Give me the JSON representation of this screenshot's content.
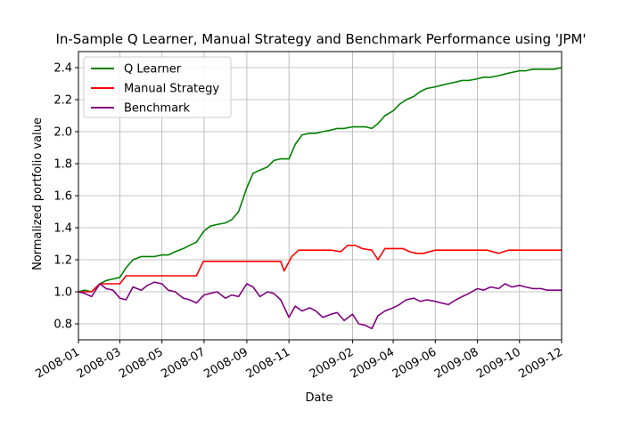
{
  "chart_data": {
    "type": "line",
    "title": "In-Sample Q Learner, Manual Strategy and Benchmark Performance using 'JPM'",
    "xlabel": "Date",
    "ylabel": "Normalized portfolio value",
    "xlim": [
      "2008-01-01",
      "2009-12-01"
    ],
    "ylim": [
      0.7,
      2.5
    ],
    "x_ticks": [
      "2008-01",
      "2008-03",
      "2008-05",
      "2008-07",
      "2008-09",
      "2008-11",
      "2009-02",
      "2009-04",
      "2009-06",
      "2009-08",
      "2009-10",
      "2009-12"
    ],
    "y_ticks": [
      0.8,
      1.0,
      1.2,
      1.4,
      1.6,
      1.8,
      2.0,
      2.2,
      2.4
    ],
    "y_tick_labels": [
      "0.8",
      "1.0",
      "1.2",
      "1.4",
      "1.6",
      "1.8",
      "2.0",
      "2.2",
      "2.4"
    ],
    "grid": true,
    "legend_position": "top-left",
    "series": [
      {
        "name": "Q Learner",
        "color": "#008000",
        "x": [
          "2008-01-01",
          "2008-01-10",
          "2008-01-20",
          "2008-02-01",
          "2008-02-10",
          "2008-02-20",
          "2008-03-01",
          "2008-03-10",
          "2008-03-20",
          "2008-04-01",
          "2008-04-10",
          "2008-04-20",
          "2008-05-01",
          "2008-05-10",
          "2008-05-20",
          "2008-06-01",
          "2008-06-10",
          "2008-06-20",
          "2008-07-01",
          "2008-07-10",
          "2008-07-20",
          "2008-08-01",
          "2008-08-10",
          "2008-08-20",
          "2008-09-01",
          "2008-09-10",
          "2008-09-20",
          "2008-10-01",
          "2008-10-10",
          "2008-10-20",
          "2008-11-01",
          "2008-11-10",
          "2008-11-20",
          "2008-12-01",
          "2008-12-10",
          "2008-12-20",
          "2009-01-01",
          "2009-01-10",
          "2009-01-20",
          "2009-02-01",
          "2009-02-10",
          "2009-02-20",
          "2009-03-01",
          "2009-03-10",
          "2009-03-20",
          "2009-04-01",
          "2009-04-10",
          "2009-04-20",
          "2009-05-01",
          "2009-05-10",
          "2009-05-20",
          "2009-06-01",
          "2009-06-10",
          "2009-06-20",
          "2009-07-01",
          "2009-07-10",
          "2009-07-20",
          "2009-08-01",
          "2009-08-10",
          "2009-08-20",
          "2009-09-01",
          "2009-09-10",
          "2009-09-20",
          "2009-10-01",
          "2009-10-10",
          "2009-10-20",
          "2009-11-01",
          "2009-11-10",
          "2009-11-20",
          "2009-12-01"
        ],
        "values": [
          1.0,
          1.01,
          1.0,
          1.05,
          1.07,
          1.08,
          1.09,
          1.15,
          1.2,
          1.22,
          1.22,
          1.22,
          1.23,
          1.23,
          1.25,
          1.27,
          1.29,
          1.31,
          1.38,
          1.41,
          1.42,
          1.43,
          1.45,
          1.5,
          1.65,
          1.74,
          1.76,
          1.78,
          1.82,
          1.83,
          1.83,
          1.92,
          1.98,
          1.99,
          1.99,
          2.0,
          2.01,
          2.02,
          2.02,
          2.03,
          2.03,
          2.03,
          2.02,
          2.05,
          2.1,
          2.13,
          2.17,
          2.2,
          2.22,
          2.25,
          2.27,
          2.28,
          2.29,
          2.3,
          2.31,
          2.32,
          2.32,
          2.33,
          2.34,
          2.34,
          2.35,
          2.36,
          2.37,
          2.38,
          2.38,
          2.39,
          2.39,
          2.39,
          2.39,
          2.4
        ]
      },
      {
        "name": "Manual Strategy",
        "color": "#ff0000",
        "x": [
          "2008-01-01",
          "2008-01-10",
          "2008-01-20",
          "2008-02-01",
          "2008-02-20",
          "2008-03-01",
          "2008-03-10",
          "2008-03-20",
          "2008-05-01",
          "2008-06-20",
          "2008-06-30",
          "2008-07-10",
          "2008-08-01",
          "2008-09-01",
          "2008-10-01",
          "2008-10-20",
          "2008-10-25",
          "2008-11-05",
          "2008-11-15",
          "2008-12-01",
          "2009-01-01",
          "2009-01-15",
          "2009-01-25",
          "2009-02-05",
          "2009-02-15",
          "2009-03-01",
          "2009-03-10",
          "2009-03-20",
          "2009-04-01",
          "2009-04-15",
          "2009-04-25",
          "2009-05-05",
          "2009-05-15",
          "2009-06-01",
          "2009-06-15",
          "2009-07-01",
          "2009-07-20",
          "2009-08-01",
          "2009-08-15",
          "2009-09-01",
          "2009-09-15",
          "2009-10-01",
          "2009-11-01",
          "2009-12-01"
        ],
        "values": [
          1.0,
          1.0,
          1.0,
          1.05,
          1.05,
          1.05,
          1.1,
          1.1,
          1.1,
          1.1,
          1.19,
          1.19,
          1.19,
          1.19,
          1.19,
          1.19,
          1.13,
          1.22,
          1.26,
          1.26,
          1.26,
          1.25,
          1.29,
          1.29,
          1.27,
          1.26,
          1.2,
          1.27,
          1.27,
          1.27,
          1.25,
          1.24,
          1.24,
          1.26,
          1.26,
          1.26,
          1.26,
          1.26,
          1.26,
          1.24,
          1.26,
          1.26,
          1.26,
          1.26
        ]
      },
      {
        "name": "Benchmark",
        "color": "#800080",
        "x": [
          "2008-01-01",
          "2008-01-10",
          "2008-01-20",
          "2008-02-01",
          "2008-02-10",
          "2008-02-20",
          "2008-03-01",
          "2008-03-10",
          "2008-03-20",
          "2008-04-01",
          "2008-04-10",
          "2008-04-20",
          "2008-05-01",
          "2008-05-10",
          "2008-05-20",
          "2008-06-01",
          "2008-06-10",
          "2008-06-20",
          "2008-07-01",
          "2008-07-10",
          "2008-07-20",
          "2008-08-01",
          "2008-08-10",
          "2008-08-20",
          "2008-09-01",
          "2008-09-10",
          "2008-09-20",
          "2008-10-01",
          "2008-10-10",
          "2008-10-20",
          "2008-11-01",
          "2008-11-10",
          "2008-11-20",
          "2008-12-01",
          "2008-12-10",
          "2008-12-20",
          "2009-01-01",
          "2009-01-10",
          "2009-01-20",
          "2009-02-01",
          "2009-02-10",
          "2009-02-20",
          "2009-03-01",
          "2009-03-10",
          "2009-03-20",
          "2009-04-01",
          "2009-04-10",
          "2009-04-20",
          "2009-05-01",
          "2009-05-10",
          "2009-05-20",
          "2009-06-01",
          "2009-06-10",
          "2009-06-20",
          "2009-07-01",
          "2009-07-10",
          "2009-07-20",
          "2009-08-01",
          "2009-08-10",
          "2009-08-20",
          "2009-09-01",
          "2009-09-10",
          "2009-09-20",
          "2009-10-01",
          "2009-10-10",
          "2009-10-20",
          "2009-11-01",
          "2009-11-10",
          "2009-11-20",
          "2009-12-01"
        ],
        "values": [
          1.0,
          0.99,
          0.97,
          1.05,
          1.02,
          1.01,
          0.96,
          0.95,
          1.03,
          1.01,
          1.04,
          1.06,
          1.05,
          1.01,
          1.0,
          0.96,
          0.95,
          0.93,
          0.98,
          0.99,
          1.0,
          0.96,
          0.98,
          0.97,
          1.05,
          1.03,
          0.97,
          1.0,
          0.99,
          0.95,
          0.84,
          0.91,
          0.88,
          0.9,
          0.88,
          0.84,
          0.86,
          0.87,
          0.82,
          0.86,
          0.8,
          0.79,
          0.77,
          0.85,
          0.88,
          0.9,
          0.92,
          0.95,
          0.96,
          0.94,
          0.95,
          0.94,
          0.93,
          0.92,
          0.95,
          0.97,
          0.99,
          1.02,
          1.01,
          1.03,
          1.02,
          1.05,
          1.03,
          1.04,
          1.03,
          1.02,
          1.02,
          1.01,
          1.01,
          1.01
        ]
      }
    ]
  }
}
